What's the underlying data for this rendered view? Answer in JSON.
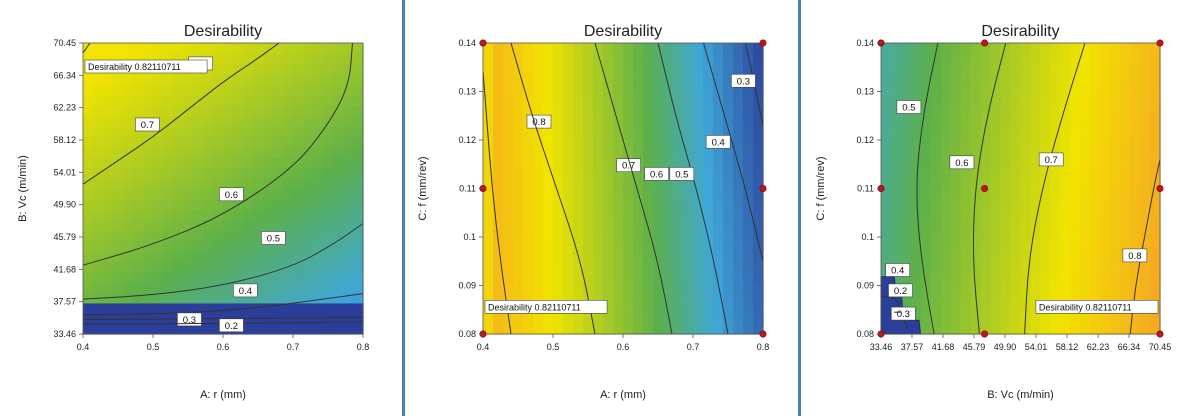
{
  "colors": {
    "frame": "#4a7fb8",
    "surface_low": "#2b3f9a",
    "surface_mid": "#5cb04a",
    "surface_high": "#f2e400",
    "surface_peak": "#f5a623",
    "design_point": "#c0141a",
    "contour": "#333333"
  },
  "chart_data": [
    {
      "type": "heatmap",
      "title": "Desirability",
      "xlabel": "A: r (mm)",
      "ylabel": "B: Vc (m/min)",
      "xlim": [
        0.4,
        0.8
      ],
      "ylim": [
        33.46,
        70.45
      ],
      "x_ticks": [
        "0.4",
        "0.5",
        "0.6",
        "0.7",
        "0.8"
      ],
      "y_ticks": [
        "33.46",
        "37.57",
        "41.68",
        "45.79",
        "49.90",
        "54.01",
        "58.12",
        "62.23",
        "66.34",
        "70.45"
      ],
      "contours": [
        {
          "level": "0.8",
          "points": [
            [
              0.4,
              69.2
            ],
            [
              0.41,
              70.45
            ]
          ]
        },
        {
          "level": "0.7",
          "points": [
            [
              0.4,
              52.5
            ],
            [
              0.45,
              55.5
            ],
            [
              0.5,
              58.5
            ],
            [
              0.55,
              62.0
            ],
            [
              0.6,
              65.5
            ],
            [
              0.65,
              68.5
            ],
            [
              0.68,
              70.45
            ]
          ]
        },
        {
          "level": "0.6",
          "points": [
            [
              0.4,
              42.2
            ],
            [
              0.5,
              44.8
            ],
            [
              0.6,
              48.5
            ],
            [
              0.7,
              54.5
            ],
            [
              0.75,
              60.0
            ],
            [
              0.78,
              65.0
            ],
            [
              0.785,
              70.45
            ]
          ]
        },
        {
          "level": "0.5",
          "points": [
            [
              0.4,
              37.9
            ],
            [
              0.5,
              38.4
            ],
            [
              0.6,
              39.6
            ],
            [
              0.7,
              42.0
            ],
            [
              0.76,
              45.0
            ],
            [
              0.8,
              47.5
            ]
          ]
        },
        {
          "level": "0.4",
          "points": [
            [
              0.4,
              35.9
            ],
            [
              0.55,
              36.1
            ],
            [
              0.65,
              36.8
            ],
            [
              0.72,
              37.6
            ],
            [
              0.8,
              38.6
            ]
          ]
        },
        {
          "level": "0.3",
          "points": [
            [
              0.4,
              35.3
            ],
            [
              0.6,
              35.4
            ],
            [
              0.8,
              35.6
            ]
          ]
        },
        {
          "level": "0.2",
          "points": [
            [
              0.4,
              34.7
            ],
            [
              0.6,
              34.8
            ],
            [
              0.8,
              35.0
            ]
          ]
        }
      ],
      "design_points": [],
      "annotation": {
        "text": "Desirability 0.82110711",
        "x": 0.4,
        "y": 67.4
      }
    },
    {
      "type": "heatmap",
      "title": "Desirability",
      "xlabel": "A: r (mm)",
      "ylabel": "C: f (mm/rev)",
      "xlim": [
        0.4,
        0.8
      ],
      "ylim": [
        0.08,
        0.14
      ],
      "x_ticks": [
        "0.4",
        "0.5",
        "0.6",
        "0.7",
        "0.8"
      ],
      "y_ticks": [
        "0.08",
        "0.09",
        "0.1",
        "0.11",
        "0.12",
        "0.13",
        "0.14"
      ],
      "contours": [
        {
          "level": "0.8",
          "points": [
            [
              0.44,
              0.08
            ],
            [
              0.425,
              0.095
            ],
            [
              0.413,
              0.11
            ],
            [
              0.405,
              0.125
            ],
            [
              0.4,
              0.134
            ]
          ]
        },
        {
          "level": "0.7",
          "points": [
            [
              0.56,
              0.08
            ],
            [
              0.54,
              0.095
            ],
            [
              0.505,
              0.11
            ],
            [
              0.47,
              0.125
            ],
            [
              0.44,
              0.14
            ]
          ]
        },
        {
          "level": "0.6",
          "points": [
            [
              0.67,
              0.08
            ],
            [
              0.65,
              0.095
            ],
            [
              0.62,
              0.11
            ],
            [
              0.59,
              0.125
            ],
            [
              0.56,
              0.14
            ]
          ]
        },
        {
          "level": "0.5",
          "points": [
            [
              0.75,
              0.08
            ],
            [
              0.73,
              0.095
            ],
            [
              0.705,
              0.11
            ],
            [
              0.675,
              0.125
            ],
            [
              0.65,
              0.14
            ]
          ]
        },
        {
          "level": "0.4",
          "points": [
            [
              0.8,
              0.095
            ],
            [
              0.775,
              0.11
            ],
            [
              0.745,
              0.125
            ],
            [
              0.715,
              0.14
            ]
          ]
        },
        {
          "level": "0.3",
          "points": [
            [
              0.8,
              0.123
            ],
            [
              0.79,
              0.13
            ],
            [
              0.775,
              0.14
            ]
          ]
        }
      ],
      "design_points": [
        [
          0.4,
          0.08
        ],
        [
          0.4,
          0.11
        ],
        [
          0.4,
          0.14
        ],
        [
          0.8,
          0.08
        ],
        [
          0.8,
          0.11
        ],
        [
          0.8,
          0.14
        ]
      ],
      "annotation": {
        "text": "Desirability 0.82110711",
        "x": 0.4,
        "y": 0.0855
      }
    },
    {
      "type": "heatmap",
      "title": "Desirability",
      "xlabel": "B: Vc (m/min)",
      "ylabel": "C: f (mm/rev)",
      "xlim": [
        33.46,
        70.45
      ],
      "ylim": [
        0.08,
        0.14
      ],
      "x_ticks": [
        "33.46",
        "37.57",
        "41.68",
        "45.79",
        "49.90",
        "54.01",
        "58.12",
        "62.23",
        "66.34",
        "70.45"
      ],
      "y_ticks": [
        "0.08",
        "0.09",
        "0.1",
        "0.11",
        "0.12",
        "0.13",
        "0.14"
      ],
      "contours": [
        {
          "level": "0.5",
          "points": [
            [
              40.5,
              0.08
            ],
            [
              38.8,
              0.095
            ],
            [
              38.0,
              0.11
            ],
            [
              39.0,
              0.125
            ],
            [
              41.0,
              0.14
            ]
          ]
        },
        {
          "level": "0.6",
          "points": [
            [
              46.5,
              0.08
            ],
            [
              45.6,
              0.095
            ],
            [
              45.9,
              0.11
            ],
            [
              47.5,
              0.125
            ],
            [
              50.0,
              0.14
            ]
          ]
        },
        {
          "level": "0.7",
          "points": [
            [
              52.5,
              0.08
            ],
            [
              53.0,
              0.095
            ],
            [
              54.8,
              0.11
            ],
            [
              57.5,
              0.125
            ],
            [
              60.5,
              0.14
            ]
          ]
        },
        {
          "level": "0.8",
          "points": [
            [
              66.5,
              0.08
            ],
            [
              67.2,
              0.09
            ],
            [
              68.4,
              0.1
            ],
            [
              69.6,
              0.11
            ],
            [
              70.45,
              0.116
            ]
          ]
        },
        {
          "level": "0.4",
          "points": [
            [
              33.46,
              0.0877
            ],
            [
              35.0,
              0.0877
            ],
            [
              35.8,
              0.0865
            ],
            [
              36.0,
              0.085
            ]
          ]
        },
        {
          "level": "0.3",
          "points": [
            [
              35.0,
              0.083
            ],
            [
              36.6,
              0.083
            ],
            [
              37.0,
              0.081
            ]
          ]
        },
        {
          "level": "0.2",
          "points": [
            [
              35.2,
              0.0845
            ],
            [
              36.2,
              0.0845
            ]
          ]
        }
      ],
      "low_region": [
        [
          33.46,
          0.08
        ],
        [
          33.46,
          0.0918
        ],
        [
          35.2,
          0.0918
        ],
        [
          35.4,
          0.0895
        ],
        [
          36.1,
          0.0895
        ],
        [
          36.3,
          0.0855
        ],
        [
          37.0,
          0.0855
        ],
        [
          37.2,
          0.0828
        ],
        [
          38.5,
          0.0828
        ],
        [
          38.7,
          0.08
        ]
      ],
      "design_points": [
        [
          33.46,
          0.08
        ],
        [
          33.46,
          0.11
        ],
        [
          33.46,
          0.14
        ],
        [
          47.2,
          0.08
        ],
        [
          47.2,
          0.11
        ],
        [
          47.2,
          0.14
        ],
        [
          70.45,
          0.08
        ],
        [
          70.45,
          0.11
        ],
        [
          70.45,
          0.14
        ]
      ],
      "annotation": {
        "text": "Desirability 0.82110711",
        "x": 70.45,
        "y": 0.0855
      }
    }
  ]
}
